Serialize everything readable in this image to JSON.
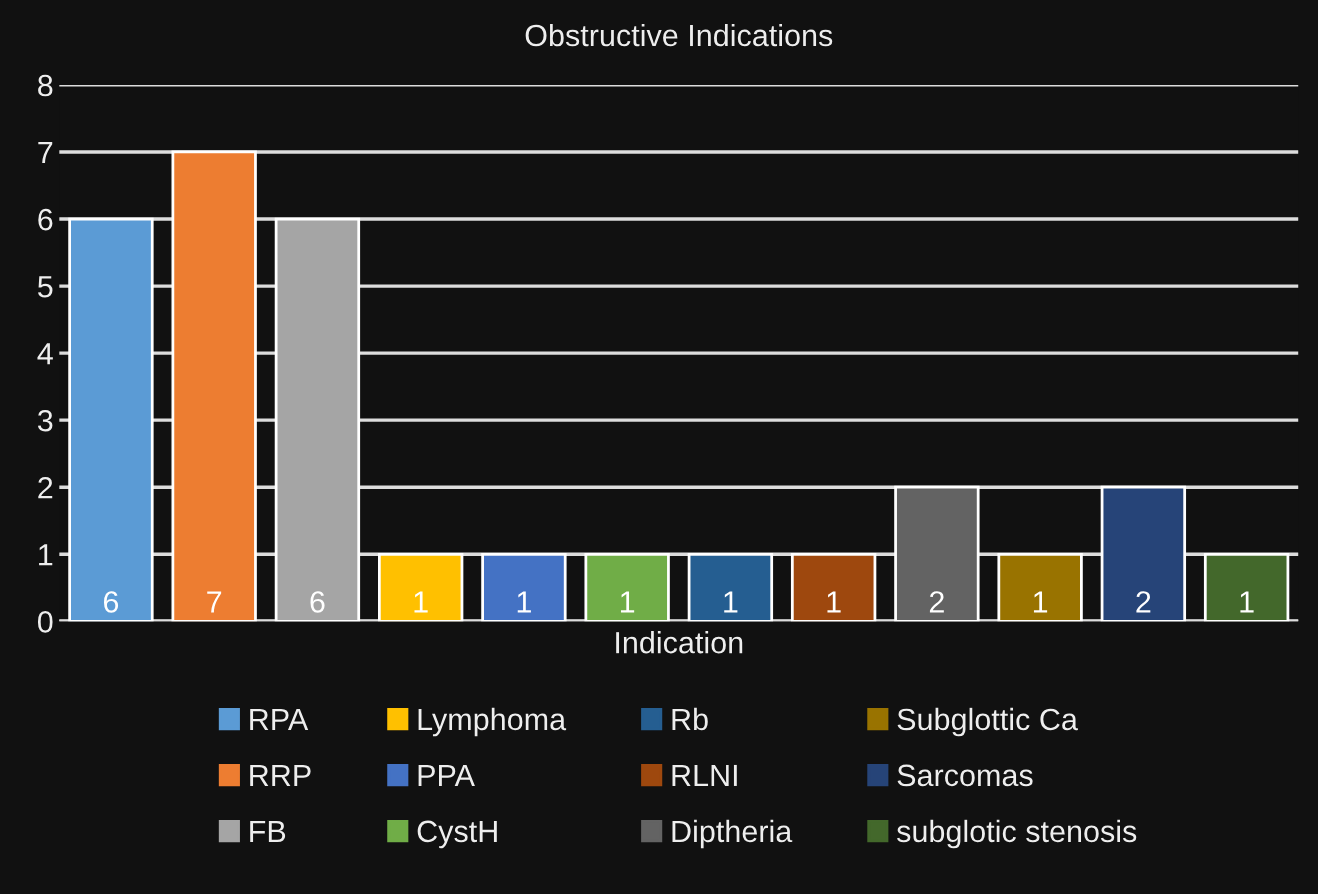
{
  "chart_data": {
    "type": "bar",
    "title": "Obstructive Indications",
    "xlabel": "Indication",
    "categories": [
      null
    ],
    "series": [
      {
        "name": "RPA",
        "color": "#5b9bd5",
        "values": [
          6
        ]
      },
      {
        "name": "RRP",
        "color": "#ed7d31",
        "values": [
          7
        ]
      },
      {
        "name": "FB",
        "color": "#a5a5a5",
        "values": [
          6
        ]
      },
      {
        "name": "Lymphoma",
        "color": "#ffc000",
        "values": [
          1
        ]
      },
      {
        "name": "PPA",
        "color": "#4472c4",
        "values": [
          1
        ]
      },
      {
        "name": "CystH",
        "color": "#70ad47",
        "values": [
          1
        ]
      },
      {
        "name": "Rb",
        "color": "#255e91",
        "values": [
          1
        ]
      },
      {
        "name": "RLNI",
        "color": "#9e480e",
        "values": [
          1
        ]
      },
      {
        "name": "Diptheria",
        "color": "#636363",
        "values": [
          2
        ]
      },
      {
        "name": "Subglottic Ca",
        "color": "#997300",
        "values": [
          1
        ]
      },
      {
        "name": "Sarcomas",
        "color": "#264478",
        "values": [
          2
        ]
      },
      {
        "name": "subglotic stenosis",
        "color": "#43682b",
        "values": [
          1
        ]
      }
    ],
    "ylim": [
      0,
      8
    ],
    "yticks": [
      0,
      1,
      2,
      3,
      4,
      5,
      6,
      7,
      8
    ],
    "grid": "y",
    "legend": "bottom",
    "data_labels": true
  }
}
